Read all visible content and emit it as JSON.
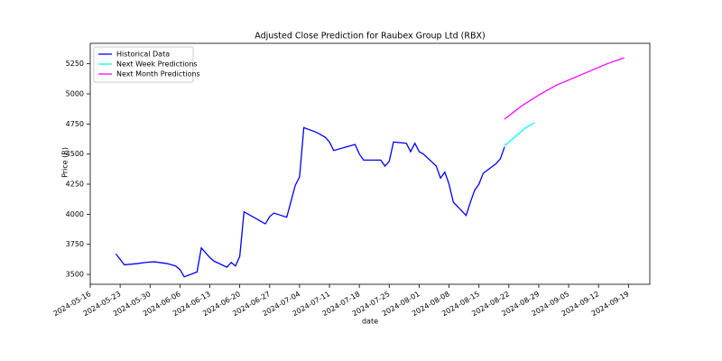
{
  "chart_data": {
    "type": "line",
    "title": "Adjusted Close Prediction for Raubex Group Ltd (RBX)",
    "x_label": "date",
    "y_label": "Price (R)",
    "xlim": [
      "2024-05-16",
      "2024-09-24"
    ],
    "ylim": [
      3418,
      5420
    ],
    "xticks": [
      "2024-05-16",
      "2024-05-23",
      "2024-05-30",
      "2024-06-06",
      "2024-06-13",
      "2024-06-20",
      "2024-06-27",
      "2024-07-04",
      "2024-07-11",
      "2024-07-18",
      "2024-07-25",
      "2024-08-01",
      "2024-08-08",
      "2024-08-15",
      "2024-08-22",
      "2024-08-29",
      "2024-09-05",
      "2024-09-12",
      "2024-09-19"
    ],
    "yticks": [
      3500,
      3750,
      4000,
      4250,
      4500,
      4750,
      5000,
      5250
    ],
    "legend": "upper left",
    "series": [
      {
        "name": "Historical Data",
        "color": "#0000ff",
        "x": [
          "2024-05-22",
          "2024-05-24",
          "2024-05-27",
          "2024-05-29",
          "2024-05-31",
          "2024-06-03",
          "2024-06-05",
          "2024-06-06",
          "2024-06-07",
          "2024-06-10",
          "2024-06-11",
          "2024-06-12",
          "2024-06-13",
          "2024-06-14",
          "2024-06-17",
          "2024-06-18",
          "2024-06-19",
          "2024-06-20",
          "2024-06-21",
          "2024-06-24",
          "2024-06-25",
          "2024-06-26",
          "2024-06-27",
          "2024-06-28",
          "2024-07-01",
          "2024-07-03",
          "2024-07-04",
          "2024-07-05",
          "2024-07-08",
          "2024-07-09",
          "2024-07-10",
          "2024-07-11",
          "2024-07-12",
          "2024-07-15",
          "2024-07-16",
          "2024-07-17",
          "2024-07-18",
          "2024-07-19",
          "2024-07-22",
          "2024-07-23",
          "2024-07-24",
          "2024-07-25",
          "2024-07-26",
          "2024-07-29",
          "2024-07-30",
          "2024-07-31",
          "2024-08-01",
          "2024-08-02",
          "2024-08-05",
          "2024-08-06",
          "2024-08-07",
          "2024-08-08",
          "2024-08-09",
          "2024-08-12",
          "2024-08-13",
          "2024-08-14",
          "2024-08-15",
          "2024-08-16",
          "2024-08-19",
          "2024-08-20",
          "2024-08-21"
        ],
        "values": [
          3670,
          3580,
          3590,
          3600,
          3605,
          3590,
          3570,
          3540,
          3480,
          3520,
          3720,
          3680,
          3640,
          3610,
          3560,
          3600,
          3570,
          3650,
          4020,
          3960,
          3940,
          3920,
          3980,
          4010,
          3975,
          4240,
          4310,
          4720,
          4680,
          4660,
          4640,
          4600,
          4530,
          4560,
          4570,
          4580,
          4500,
          4450,
          4450,
          4450,
          4400,
          4440,
          4600,
          4590,
          4520,
          4590,
          4520,
          4500,
          4400,
          4300,
          4350,
          4250,
          4100,
          3990,
          4100,
          4200,
          4250,
          4340,
          4420,
          4460,
          4560
        ]
      },
      {
        "name": "Next Week Predictions",
        "color": "#00ffff",
        "x": [
          "2024-08-21",
          "2024-08-22",
          "2024-08-23",
          "2024-08-24",
          "2024-08-25",
          "2024-08-26",
          "2024-08-27",
          "2024-08-28"
        ],
        "values": [
          4570,
          4600,
          4630,
          4660,
          4690,
          4720,
          4740,
          4760
        ]
      },
      {
        "name": "Next Month Predictions",
        "color": "#ff00ff",
        "x": [
          "2024-08-21",
          "2024-08-25",
          "2024-08-29",
          "2024-09-02",
          "2024-09-06",
          "2024-09-10",
          "2024-09-14",
          "2024-09-18"
        ],
        "values": [
          4790,
          4900,
          4990,
          5070,
          5130,
          5190,
          5250,
          5300
        ]
      }
    ]
  }
}
